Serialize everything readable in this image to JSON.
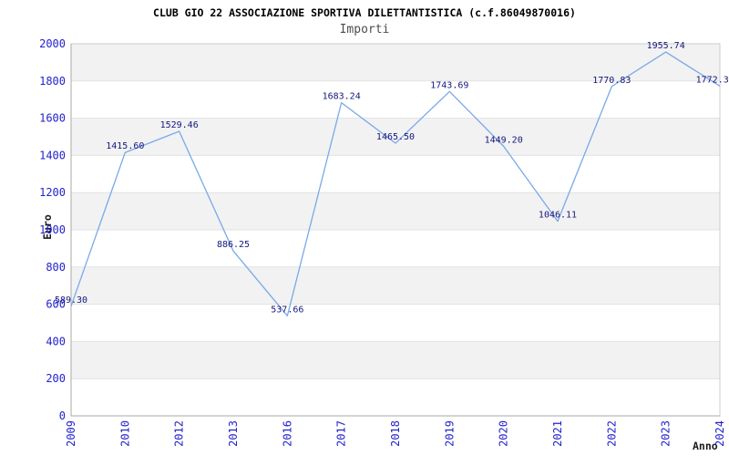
{
  "chart_data": {
    "type": "line",
    "title": "CLUB GIO 22 ASSOCIAZIONE SPORTIVA DILETTANTISTICA (c.f.86049870016)",
    "subtitle": "Importi",
    "xlabel": "Anno",
    "ylabel": "Euro",
    "categories": [
      "2009",
      "2010",
      "2012",
      "2013",
      "2016",
      "2017",
      "2018",
      "2019",
      "2020",
      "2021",
      "2022",
      "2023",
      "2024"
    ],
    "values": [
      589.3,
      1415.6,
      1529.46,
      886.25,
      537.66,
      1683.24,
      1465.5,
      1743.69,
      1449.2,
      1046.11,
      1770.83,
      1955.74,
      1772.3
    ],
    "point_labels": [
      "589.30",
      "1415.60",
      "1529.46",
      "886.25",
      "537.66",
      "1683.24",
      "1465.50",
      "1743.69",
      "1449.20",
      "1046.11",
      "1770.83",
      "1955.74",
      "1772.3"
    ],
    "ylim": [
      0,
      2000
    ],
    "y_tick_step": 200,
    "grid": true,
    "legend_position": "none",
    "band_style": "alternating-horizontal",
    "colors": {
      "line": "#79a9e8",
      "tick_label": "#2222cc",
      "point_label": "#16167e",
      "band": "#f2f2f2",
      "gridline": "#e2e2e2",
      "axis": "#aaaaaa",
      "border": "#cccccc",
      "title": "#000000",
      "subtitle": "#4d4d4d"
    }
  }
}
